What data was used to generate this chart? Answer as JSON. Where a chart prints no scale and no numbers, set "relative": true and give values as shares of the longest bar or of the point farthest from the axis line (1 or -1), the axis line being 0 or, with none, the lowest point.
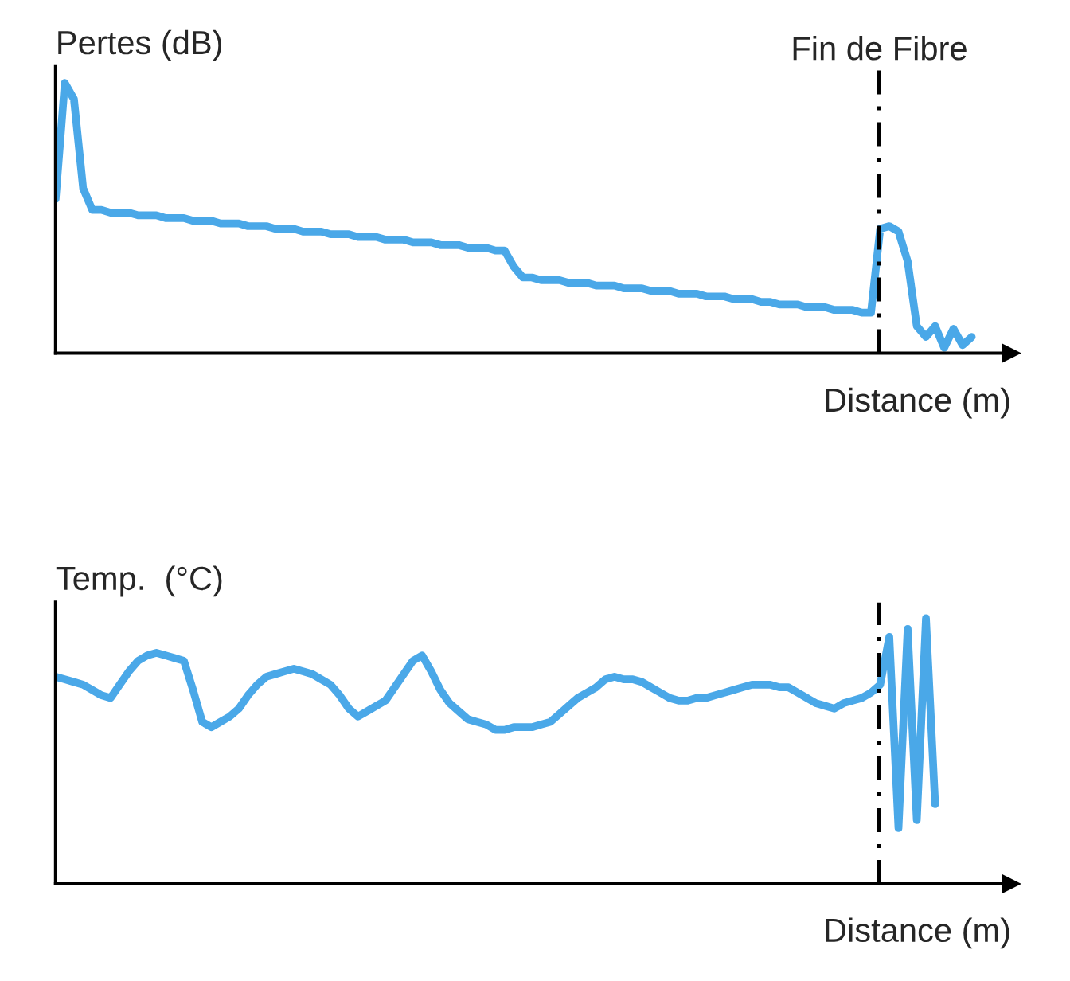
{
  "chart_data": [
    {
      "type": "line",
      "ylabel": "Pertes (dB)",
      "xlabel": "Distance (m)",
      "relative": true,
      "categories": [
        null,
        null,
        null,
        null,
        null,
        null,
        null,
        null,
        null,
        null,
        null,
        null,
        null,
        null,
        null,
        null,
        null,
        null,
        null,
        null,
        null,
        null,
        null,
        null,
        null,
        null,
        null,
        null,
        null,
        null,
        null,
        null,
        null,
        null,
        null,
        null,
        null,
        null,
        null,
        null,
        null,
        null,
        null,
        null,
        null,
        null,
        null,
        null,
        null,
        null,
        null,
        null,
        null,
        null,
        null,
        null,
        null,
        null,
        null,
        null,
        null,
        null,
        null,
        null,
        null,
        null,
        null,
        null,
        null,
        null,
        null,
        null,
        null,
        null,
        null,
        null,
        null,
        null,
        null,
        null,
        null,
        null,
        null,
        null,
        null,
        null,
        null,
        null,
        null,
        null,
        null,
        null,
        null,
        null,
        null,
        null,
        null,
        null,
        null,
        null,
        null
      ],
      "series": [
        {
          "color": "#4aa8e8",
          "values": [
            0.57,
            1.0,
            0.94,
            0.61,
            0.53,
            0.53,
            0.52,
            0.52,
            0.52,
            0.51,
            0.51,
            0.51,
            0.5,
            0.5,
            0.5,
            0.49,
            0.49,
            0.49,
            0.48,
            0.48,
            0.48,
            0.47,
            0.47,
            0.47,
            0.46,
            0.46,
            0.46,
            0.45,
            0.45,
            0.45,
            0.44,
            0.44,
            0.44,
            0.43,
            0.43,
            0.43,
            0.42,
            0.42,
            0.42,
            0.41,
            0.41,
            0.41,
            0.4,
            0.4,
            0.4,
            0.39,
            0.39,
            0.39,
            0.38,
            0.38,
            0.32,
            0.28,
            0.28,
            0.27,
            0.27,
            0.27,
            0.26,
            0.26,
            0.26,
            0.25,
            0.25,
            0.25,
            0.24,
            0.24,
            0.24,
            0.23,
            0.23,
            0.23,
            0.22,
            0.22,
            0.22,
            0.21,
            0.21,
            0.21,
            0.2,
            0.2,
            0.2,
            0.19,
            0.19,
            0.18,
            0.18,
            0.18,
            0.17,
            0.17,
            0.17,
            0.16,
            0.16,
            0.16,
            0.15,
            0.15,
            0.46,
            0.47,
            0.45,
            0.34,
            0.1,
            0.06,
            0.1,
            0.02,
            0.09,
            0.03,
            0.06
          ]
        }
      ],
      "annotations": [
        "Fin de Fibre"
      ]
    },
    {
      "type": "line",
      "ylabel": "Temp.  (°C)",
      "xlabel": "Distance (m)",
      "relative": true,
      "categories": [
        null,
        null,
        null,
        null,
        null,
        null,
        null,
        null,
        null,
        null,
        null,
        null,
        null,
        null,
        null,
        null,
        null,
        null,
        null,
        null,
        null,
        null,
        null,
        null,
        null,
        null,
        null,
        null,
        null,
        null,
        null,
        null,
        null,
        null,
        null,
        null,
        null,
        null,
        null,
        null,
        null,
        null,
        null,
        null,
        null,
        null,
        null,
        null,
        null,
        null,
        null,
        null,
        null,
        null,
        null,
        null,
        null,
        null,
        null,
        null,
        null,
        null,
        null,
        null,
        null,
        null,
        null,
        null,
        null,
        null,
        null,
        null,
        null,
        null,
        null,
        null,
        null,
        null,
        null,
        null,
        null,
        null,
        null,
        null,
        null,
        null,
        null,
        null,
        null,
        null,
        null,
        null,
        null,
        null,
        null,
        null,
        null,
        null,
        null,
        null,
        null
      ],
      "series": [
        {
          "color": "#4aa8e8",
          "values": [
            0.78,
            0.77,
            0.76,
            0.75,
            0.73,
            0.71,
            0.7,
            0.75,
            0.8,
            0.84,
            0.86,
            0.87,
            0.86,
            0.85,
            0.84,
            0.73,
            0.61,
            0.59,
            0.61,
            0.63,
            0.66,
            0.71,
            0.75,
            0.78,
            0.79,
            0.8,
            0.81,
            0.8,
            0.79,
            0.77,
            0.75,
            0.71,
            0.66,
            0.63,
            0.65,
            0.67,
            0.69,
            0.74,
            0.79,
            0.84,
            0.86,
            0.8,
            0.73,
            0.68,
            0.65,
            0.62,
            0.61,
            0.6,
            0.58,
            0.58,
            0.59,
            0.59,
            0.59,
            0.6,
            0.61,
            0.64,
            0.67,
            0.7,
            0.72,
            0.74,
            0.77,
            0.78,
            0.77,
            0.77,
            0.76,
            0.74,
            0.72,
            0.7,
            0.69,
            0.69,
            0.7,
            0.7,
            0.71,
            0.72,
            0.73,
            0.74,
            0.75,
            0.75,
            0.75,
            0.74,
            0.74,
            0.72,
            0.7,
            0.68,
            0.67,
            0.66,
            0.68,
            0.69,
            0.7,
            0.72,
            0.75,
            0.93,
            0.21,
            0.96,
            0.24,
            1.0,
            0.3,
            null,
            null,
            null,
            null
          ]
        }
      ]
    }
  ]
}
